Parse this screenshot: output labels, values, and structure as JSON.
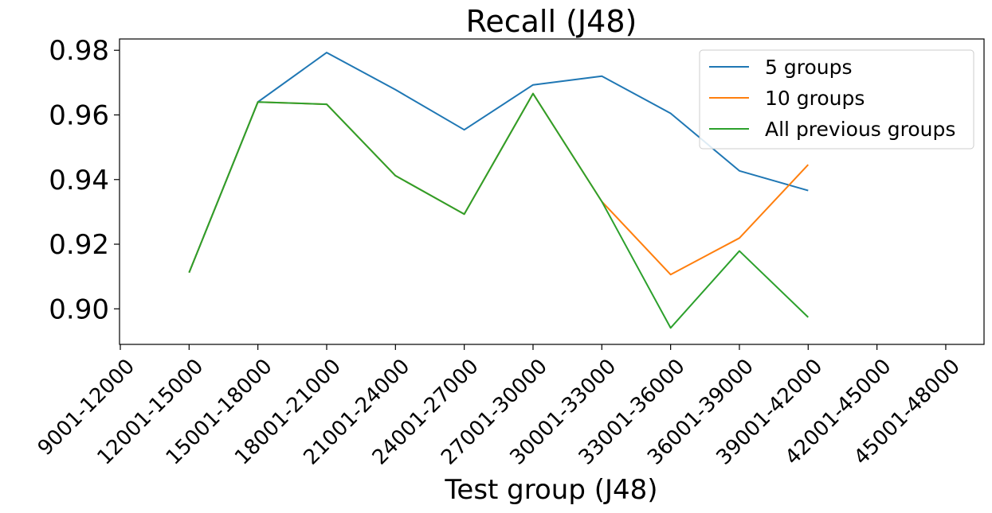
{
  "chart_data": {
    "type": "line",
    "title": "Recall (J48)",
    "xlabel": "Test group (J48)",
    "ylabel": "",
    "categories": [
      "9001-12000",
      "12001-15000",
      "15001-18000",
      "18001-21000",
      "21001-24000",
      "24001-27000",
      "27001-30000",
      "30001-33000",
      "33001-36000",
      "36001-39000",
      "39001-42000",
      "42001-45000",
      "45001-48000"
    ],
    "ylim": [
      0.889,
      0.9835
    ],
    "yticks": [
      0.9,
      0.92,
      0.94,
      0.96,
      0.98
    ],
    "ytick_labels": [
      "0.90",
      "0.92",
      "0.94",
      "0.96",
      "0.98"
    ],
    "grid": false,
    "legend_position": "top-right",
    "series": [
      {
        "name": "5 groups",
        "color": "#1f77b4",
        "values": [
          null,
          0.9112,
          0.964,
          0.9793,
          0.9678,
          0.9554,
          0.9693,
          0.972,
          0.9605,
          0.9427,
          0.9366,
          null,
          null
        ]
      },
      {
        "name": "10 groups",
        "color": "#ff7f0e",
        "values": [
          null,
          0.9112,
          0.964,
          0.9633,
          0.9412,
          0.9293,
          0.9666,
          0.9332,
          0.9106,
          0.9219,
          0.9446,
          null,
          null
        ]
      },
      {
        "name": "All previous groups",
        "color": "#2ca02c",
        "values": [
          null,
          0.9112,
          0.964,
          0.9633,
          0.9412,
          0.9293,
          0.9666,
          0.9332,
          0.8941,
          0.9179,
          0.8974,
          null,
          null
        ]
      }
    ]
  }
}
